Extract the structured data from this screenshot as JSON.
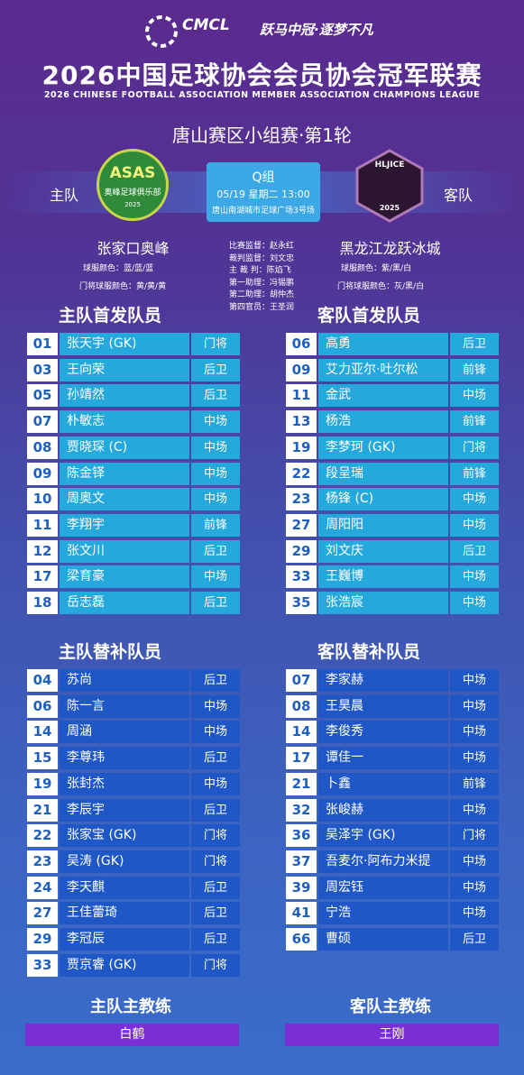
{
  "header": {
    "logo_text": "CMCL",
    "slogan": "跃马中冠·逐梦不凡",
    "title": "2026中国足球协会会员协会冠军联赛",
    "subtitle": "2026 CHINESE FOOTBALL ASSOCIATION MEMBER ASSOCIATION CHAMPIONS LEAGUE",
    "round": "唐山赛区小组赛·第1轮"
  },
  "match": {
    "home_label": "主队",
    "away_label": "客队",
    "group": "Q组",
    "datetime": "05/19 星期二 13:00",
    "venue": "唐山南湖城市足球广场3号场",
    "home_badge": {
      "name": "ASAS",
      "club": "奥峰足球俱乐部",
      "year": "2025"
    },
    "away_badge": {
      "name": "HLJICE",
      "year": "2025"
    },
    "home_team": "张家口奥峰",
    "away_team": "黑龙江龙跃冰城",
    "home_kit": "球服颜色：蓝/蓝/蓝",
    "home_gk_kit": "门将球服颜色：黄/黄/黄",
    "away_kit": "球服颜色：紫/黑/白",
    "away_gk_kit": "门将球服颜色：灰/黑/白",
    "officials": [
      "比赛监督：赵永红",
      "裁判监督：刘文忠",
      "主 裁 判：陈焰飞",
      "第一助理：冯锡鹏",
      "第二助理：胡仲杰",
      "第四官员：王圣润"
    ]
  },
  "home_starters": {
    "title": "主队首发队员",
    "players": [
      [
        "01",
        "张天宇 (GK)",
        "门将"
      ],
      [
        "03",
        "王向荣",
        "后卫"
      ],
      [
        "05",
        "孙靖然",
        "后卫"
      ],
      [
        "07",
        "朴敏志",
        "中场"
      ],
      [
        "08",
        "贾晓琛 (C)",
        "中场"
      ],
      [
        "09",
        "陈金铎",
        "中场"
      ],
      [
        "10",
        "周奥文",
        "中场"
      ],
      [
        "11",
        "李翔宇",
        "前锋"
      ],
      [
        "12",
        "张文川",
        "后卫"
      ],
      [
        "17",
        "梁育豪",
        "中场"
      ],
      [
        "18",
        "岳志磊",
        "后卫"
      ]
    ]
  },
  "away_starters": {
    "title": "客队首发队员",
    "players": [
      [
        "06",
        "高勇",
        "后卫"
      ],
      [
        "09",
        "艾力亚尔·吐尔松",
        "前锋"
      ],
      [
        "11",
        "金武",
        "中场"
      ],
      [
        "13",
        "杨浩",
        "前锋"
      ],
      [
        "19",
        "李梦珂 (GK)",
        "门将"
      ],
      [
        "22",
        "段呈瑞",
        "前锋"
      ],
      [
        "23",
        "杨锋 (C)",
        "中场"
      ],
      [
        "27",
        "周阳阳",
        "中场"
      ],
      [
        "29",
        "刘文庆",
        "后卫"
      ],
      [
        "33",
        "王巍博",
        "中场"
      ],
      [
        "35",
        "张浩宸",
        "中场"
      ]
    ]
  },
  "home_subs": {
    "title": "主队替补队员",
    "players": [
      [
        "04",
        "苏尚",
        "后卫"
      ],
      [
        "06",
        "陈一言",
        "中场"
      ],
      [
        "14",
        "周涵",
        "中场"
      ],
      [
        "15",
        "李尊玮",
        "后卫"
      ],
      [
        "19",
        "张封杰",
        "中场"
      ],
      [
        "21",
        "李辰宇",
        "后卫"
      ],
      [
        "22",
        "张家宝 (GK)",
        "门将"
      ],
      [
        "23",
        "吴涛 (GK)",
        "门将"
      ],
      [
        "24",
        "李天麒",
        "后卫"
      ],
      [
        "27",
        "王佳蕾琦",
        "后卫"
      ],
      [
        "29",
        "李冠辰",
        "后卫"
      ],
      [
        "33",
        "贾京睿 (GK)",
        "门将"
      ]
    ]
  },
  "away_subs": {
    "title": "客队替补队员",
    "players": [
      [
        "07",
        "李家赫",
        "中场"
      ],
      [
        "08",
        "王昊晨",
        "中场"
      ],
      [
        "14",
        "李俊秀",
        "中场"
      ],
      [
        "17",
        "谭佳一",
        "中场"
      ],
      [
        "21",
        "卜鑫",
        "前锋"
      ],
      [
        "32",
        "张峻赫",
        "中场"
      ],
      [
        "36",
        "吴泽宇 (GK)",
        "门将"
      ],
      [
        "37",
        "吾麦尔·阿布力米提",
        "中场"
      ],
      [
        "39",
        "周宏钰",
        "中场"
      ],
      [
        "41",
        "宁浩",
        "中场"
      ],
      [
        "66",
        "曹硕",
        "后卫"
      ]
    ]
  },
  "coaches": {
    "home_title": "主队主教练",
    "home_name": "白鹤",
    "away_title": "客队主教练",
    "away_name": "王刚"
  }
}
